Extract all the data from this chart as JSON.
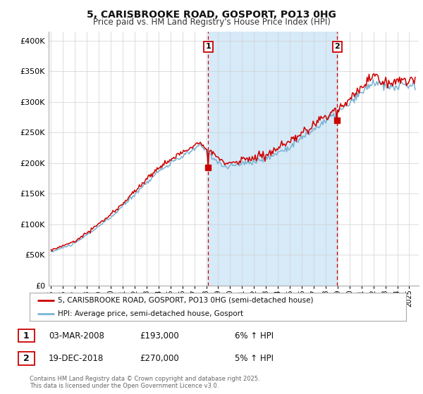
{
  "title": "5, CARISBROOKE ROAD, GOSPORT, PO13 0HG",
  "subtitle": "Price paid vs. HM Land Registry's House Price Index (HPI)",
  "ylabel_ticks": [
    "£0",
    "£50K",
    "£100K",
    "£150K",
    "£200K",
    "£250K",
    "£300K",
    "£350K",
    "£400K"
  ],
  "ytick_vals": [
    0,
    50000,
    100000,
    150000,
    200000,
    250000,
    300000,
    350000,
    400000
  ],
  "ylim": [
    0,
    415000
  ],
  "xlim_start": 1994.8,
  "xlim_end": 2025.8,
  "hpi_color": "#7ab3d4",
  "price_color": "#cc0000",
  "shade_color": "#d6eaf8",
  "marker1_x": 2008.17,
  "marker1_y": 193000,
  "marker2_x": 2018.96,
  "marker2_y": 270000,
  "vline1_x": 2008.17,
  "vline2_x": 2018.96,
  "legend_label1": "5, CARISBROOKE ROAD, GOSPORT, PO13 0HG (semi-detached house)",
  "legend_label2": "HPI: Average price, semi-detached house, Gosport",
  "annotation1_num": "1",
  "annotation2_num": "2",
  "annotation1_date": "03-MAR-2008",
  "annotation1_price": "£193,000",
  "annotation1_hpi": "6% ↑ HPI",
  "annotation2_date": "19-DEC-2018",
  "annotation2_price": "£270,000",
  "annotation2_hpi": "5% ↑ HPI",
  "footer": "Contains HM Land Registry data © Crown copyright and database right 2025.\nThis data is licensed under the Open Government Licence v3.0.",
  "background_color": "#ffffff",
  "grid_color": "#d0d0d0"
}
